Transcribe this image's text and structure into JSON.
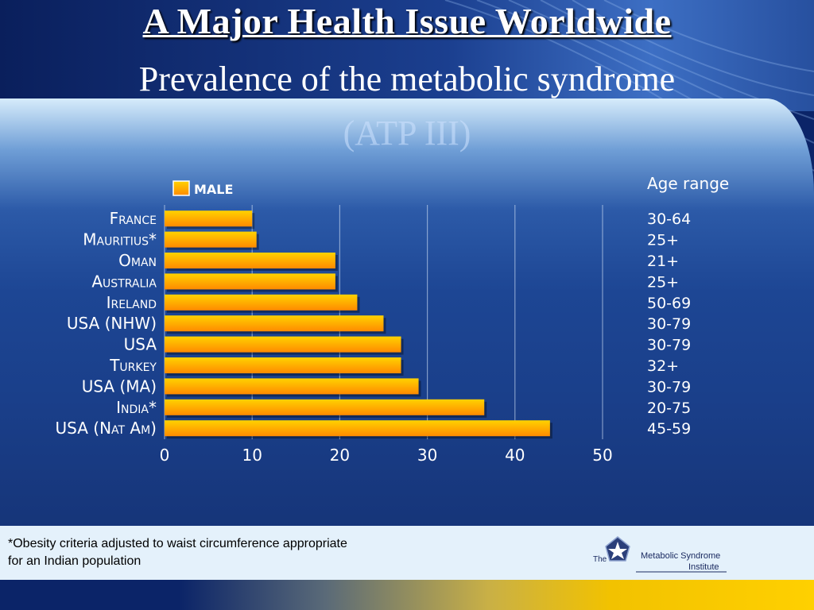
{
  "slide": {
    "title": "A Major Health Issue Worldwide",
    "subtitle": "Prevalence of the metabolic syndrome",
    "subtitle2": "(ATP III)",
    "footnote_line1": "*Obesity criteria adjusted to waist circumference appropriate",
    "footnote_line2": "for an Indian population",
    "logo": {
      "the": "The",
      "name": "Metabolic Syndrome",
      "institute": "Institute"
    }
  },
  "colors": {
    "bar_top": "#ffd200",
    "bar_bottom": "#ff8a00",
    "text_light": "#ffffff"
  },
  "chart_data": {
    "type": "bar",
    "orientation": "horizontal",
    "legend": "MALE",
    "legend_position": "top-left",
    "age_range_header": "Age range",
    "categories": [
      "France",
      "Mauritius*",
      "Oman",
      "Australia",
      "Ireland",
      "USA (NHW)",
      "USA",
      "Turkey",
      "USA (MA)",
      "India*",
      "USA (Nat Am)"
    ],
    "age_ranges": [
      "30-64",
      "25+",
      "21+",
      "25+",
      "50-69",
      "30-79",
      "30-79",
      "32+",
      "30-79",
      "20-75",
      "45-59"
    ],
    "values": [
      10,
      10.5,
      19.5,
      19.5,
      22,
      25,
      27,
      27,
      29,
      36.5,
      44
    ],
    "xlim": [
      0,
      50
    ],
    "xticks": [
      "0",
      "10",
      "20",
      "30",
      "40",
      "50"
    ],
    "grid": true
  }
}
